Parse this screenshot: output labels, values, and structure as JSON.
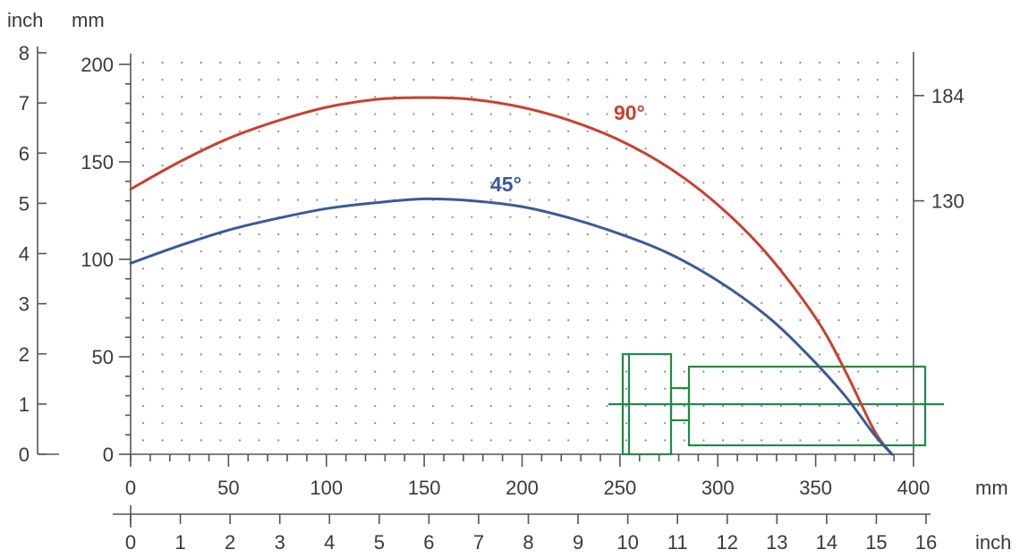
{
  "chart_data": {
    "type": "line",
    "title": "",
    "x_axis_mm": {
      "unit": "mm",
      "range": [
        0,
        400
      ],
      "ticks": [
        "0",
        "50",
        "100",
        "150",
        "200",
        "250",
        "300",
        "350",
        "400"
      ]
    },
    "x_axis_inch": {
      "unit": "inch",
      "range": [
        0,
        16
      ],
      "ticks": [
        "0",
        "1",
        "2",
        "3",
        "4",
        "5",
        "6",
        "7",
        "8",
        "9",
        "10",
        "11",
        "12",
        "13",
        "14",
        "15",
        "16"
      ]
    },
    "y_axis_mm": {
      "unit": "mm",
      "range": [
        0,
        200
      ],
      "ticks": [
        "0",
        "50",
        "100",
        "150",
        "200"
      ]
    },
    "y_axis_inch": {
      "unit": "inch",
      "range": [
        0,
        8
      ],
      "ticks": [
        "0",
        "1",
        "2",
        "3",
        "4",
        "5",
        "6",
        "7",
        "8"
      ]
    },
    "right_axis": {
      "ticks": [
        "184",
        "130"
      ],
      "values": [
        184,
        130
      ]
    },
    "grid": "dotted",
    "series": [
      {
        "name": "90°",
        "color": "#c8412f",
        "points": [
          [
            0,
            136
          ],
          [
            25,
            150
          ],
          [
            50,
            162
          ],
          [
            75,
            171
          ],
          [
            100,
            178
          ],
          [
            125,
            182
          ],
          [
            150,
            183
          ],
          [
            175,
            182
          ],
          [
            200,
            178
          ],
          [
            225,
            171
          ],
          [
            250,
            161
          ],
          [
            275,
            147
          ],
          [
            300,
            128
          ],
          [
            325,
            103
          ],
          [
            350,
            70
          ],
          [
            365,
            43
          ],
          [
            380,
            12
          ],
          [
            389,
            0
          ]
        ]
      },
      {
        "name": "45°",
        "color": "#3a5a9a",
        "points": [
          [
            0,
            98
          ],
          [
            25,
            107
          ],
          [
            50,
            115
          ],
          [
            75,
            121
          ],
          [
            100,
            126
          ],
          [
            125,
            129
          ],
          [
            150,
            131
          ],
          [
            175,
            130
          ],
          [
            200,
            127
          ],
          [
            225,
            121
          ],
          [
            250,
            113
          ],
          [
            275,
            103
          ],
          [
            300,
            89
          ],
          [
            325,
            71
          ],
          [
            345,
            52
          ],
          [
            365,
            30
          ],
          [
            380,
            10
          ],
          [
            389,
            0
          ]
        ]
      }
    ],
    "drill_color": "#1f8a46"
  }
}
